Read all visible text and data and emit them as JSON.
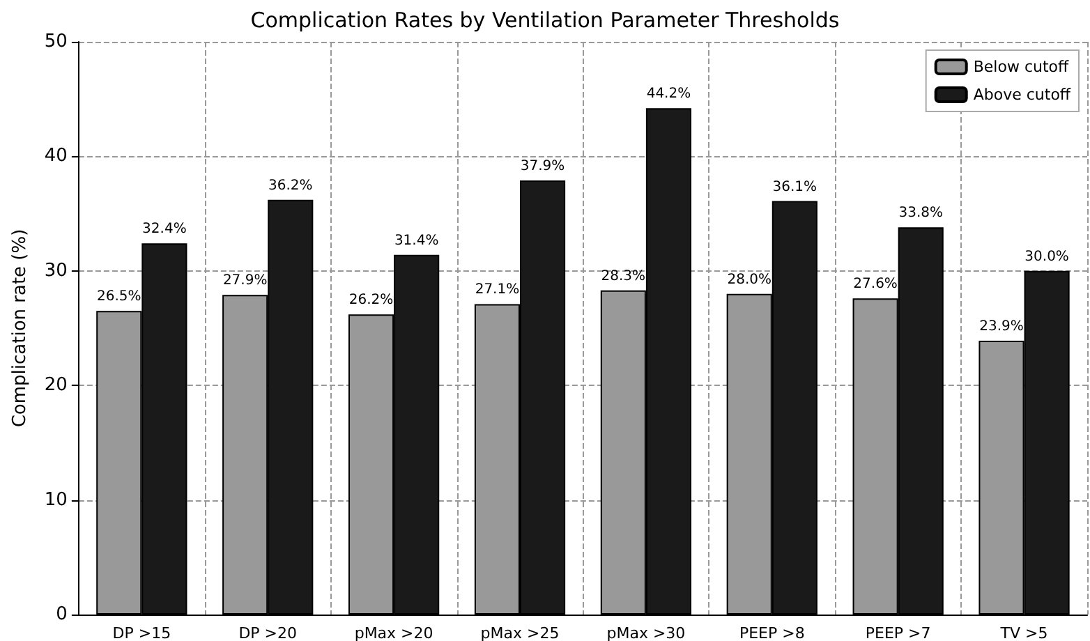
{
  "chart_data": {
    "type": "bar",
    "title": "Complication Rates by Ventilation Parameter Thresholds",
    "ylabel": "Complication rate (%)",
    "categories": [
      "DP >15",
      "DP >20",
      "pMax >20",
      "pMax >25",
      "pMax >30",
      "PEEP >8",
      "PEEP >7",
      "TV >5"
    ],
    "series": [
      {
        "name": "Below cutoff",
        "color": "#999999",
        "values": [
          26.5,
          27.9,
          26.2,
          27.1,
          28.3,
          28.0,
          27.6,
          23.9
        ],
        "value_labels": [
          "26.5%",
          "27.9%",
          "26.2%",
          "27.1%",
          "28.3%",
          "28.0%",
          "27.6%",
          "23.9%"
        ]
      },
      {
        "name": "Above cutoff",
        "color": "#1a1a1a",
        "values": [
          32.4,
          36.2,
          31.4,
          37.9,
          44.2,
          36.1,
          33.8,
          30.0
        ],
        "value_labels": [
          "32.4%",
          "36.2%",
          "31.4%",
          "37.9%",
          "44.2%",
          "36.1%",
          "33.8%",
          "30.0%"
        ]
      }
    ],
    "ylim": [
      0,
      50
    ],
    "yticks": [
      0,
      10,
      20,
      30,
      40,
      50
    ],
    "grid": true,
    "legend": "top right"
  }
}
